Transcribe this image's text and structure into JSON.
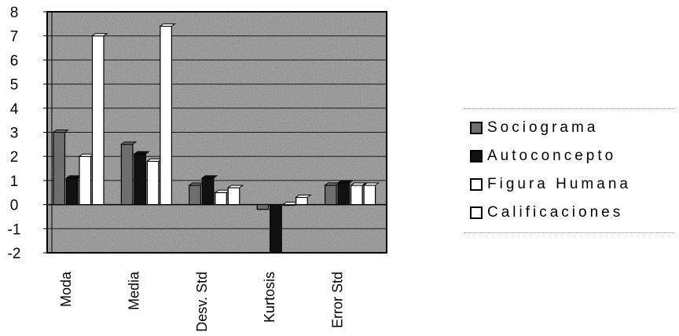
{
  "chart_data": {
    "type": "bar",
    "categories": [
      "Moda",
      "Media",
      "Desv. Std",
      "Kurtosis",
      "Error Std"
    ],
    "series": [
      {
        "name": "Sociograma",
        "values": [
          3.0,
          2.5,
          0.8,
          -0.2,
          0.8
        ]
      },
      {
        "name": "Autoconcepto",
        "values": [
          1.1,
          2.1,
          1.1,
          -2.0,
          0.9
        ]
      },
      {
        "name": "Figura Humana",
        "values": [
          2.0,
          1.8,
          0.5,
          0.0,
          0.8
        ]
      },
      {
        "name": "Calificaciones",
        "values": [
          7.0,
          7.4,
          0.7,
          0.3,
          0.8
        ]
      }
    ],
    "ylim": [
      -2,
      8
    ],
    "yticks": [
      "8",
      "7",
      "6",
      "5",
      "4",
      "3",
      "2",
      "1",
      "0",
      "-1",
      "-2"
    ],
    "grid": true,
    "legend_position": "right",
    "colors": {
      "plot_background": "#8e8e8e",
      "series": [
        "#6e6e6e",
        "#111111",
        "#ffffff",
        "#ffffff"
      ]
    }
  }
}
